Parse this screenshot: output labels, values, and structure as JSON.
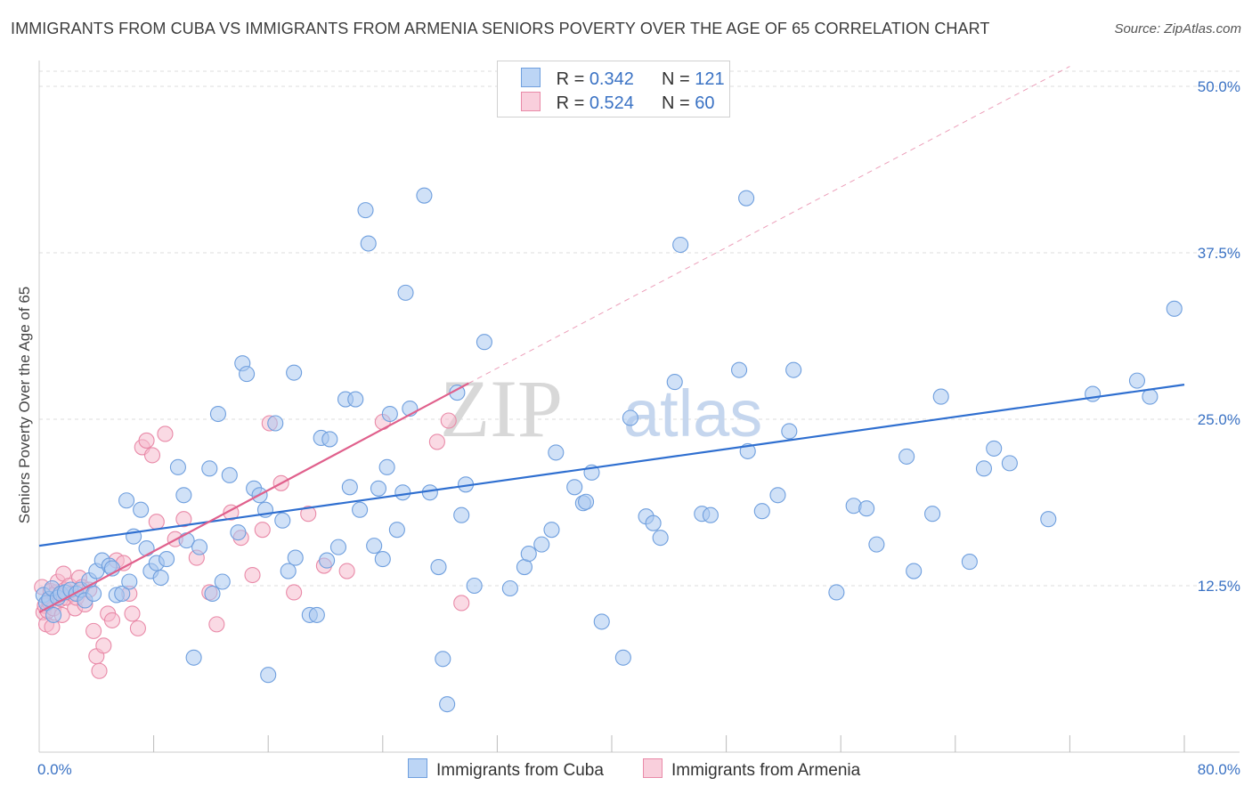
{
  "title": "IMMIGRANTS FROM CUBA VS IMMIGRANTS FROM ARMENIA SENIORS POVERTY OVER THE AGE OF 65 CORRELATION CHART",
  "source": "Source: ZipAtlas.com",
  "watermark": {
    "zip": "ZIP",
    "atlas": "atlas"
  },
  "legend": {
    "cuba": {
      "r_label": "R =",
      "r_value": "0.342",
      "n_label": "N =",
      "n_value": "121"
    },
    "armenia": {
      "r_label": "R =",
      "r_value": "0.524",
      "n_label": "N =",
      "n_value": "60"
    }
  },
  "bottom_legend": {
    "cuba": "Immigrants from Cuba",
    "armenia": "Immigrants from Armenia"
  },
  "colors": {
    "cuba_fill": "#a9c8f0",
    "cuba_stroke": "#6f9fde",
    "cuba_line": "#2f6fd0",
    "armenia_fill": "#f5bccd",
    "armenia_stroke": "#e98aa8",
    "armenia_line": "#e0608c",
    "tick_label": "#3a72c4",
    "grid": "#dddddd"
  },
  "chart_data": {
    "type": "scatter",
    "title": "IMMIGRANTS FROM CUBA VS IMMIGRANTS FROM ARMENIA SENIORS POVERTY OVER THE AGE OF 65 CORRELATION CHART",
    "xlabel": "",
    "ylabel": "Seniors Poverty Over the Age of 65",
    "xlim": [
      0,
      80
    ],
    "ylim": [
      0,
      50
    ],
    "x_tick_labels": [
      {
        "value": 0,
        "label": "0.0%"
      },
      {
        "value": 80,
        "label": "80.0%"
      }
    ],
    "y_tick_labels": [
      {
        "value": 12.5,
        "label": "12.5%"
      },
      {
        "value": 25,
        "label": "25.0%"
      },
      {
        "value": 37.5,
        "label": "37.5%"
      },
      {
        "value": 50,
        "label": "50.0%"
      }
    ],
    "x_minor_ticks": [
      8,
      16,
      24,
      32,
      40,
      48,
      56,
      64,
      72,
      80
    ],
    "series": [
      {
        "name": "Immigrants from Cuba",
        "r": 0.342,
        "n": 121,
        "trend": {
          "x": [
            0,
            80
          ],
          "y": [
            15.5,
            27.6
          ]
        },
        "points": [
          [
            0.3,
            11.8
          ],
          [
            0.5,
            11.2
          ],
          [
            0.7,
            11.5
          ],
          [
            0.9,
            12.3
          ],
          [
            1.0,
            10.3
          ],
          [
            1.3,
            11.6
          ],
          [
            1.5,
            11.9
          ],
          [
            1.8,
            12.0
          ],
          [
            2.2,
            12.2
          ],
          [
            2.6,
            11.9
          ],
          [
            2.9,
            12.2
          ],
          [
            3.2,
            11.4
          ],
          [
            3.5,
            12.9
          ],
          [
            3.8,
            11.9
          ],
          [
            4.0,
            13.6
          ],
          [
            4.4,
            14.4
          ],
          [
            4.9,
            14.0
          ],
          [
            5.1,
            13.8
          ],
          [
            5.4,
            11.8
          ],
          [
            5.8,
            11.9
          ],
          [
            6.1,
            18.9
          ],
          [
            6.3,
            12.8
          ],
          [
            6.6,
            16.2
          ],
          [
            7.1,
            18.2
          ],
          [
            7.5,
            15.3
          ],
          [
            7.8,
            13.6
          ],
          [
            8.2,
            14.2
          ],
          [
            8.5,
            13.1
          ],
          [
            8.9,
            14.5
          ],
          [
            9.7,
            21.4
          ],
          [
            10.1,
            19.3
          ],
          [
            10.3,
            15.9
          ],
          [
            10.8,
            7.1
          ],
          [
            11.2,
            15.4
          ],
          [
            11.9,
            21.3
          ],
          [
            12.1,
            11.9
          ],
          [
            12.5,
            25.4
          ],
          [
            12.8,
            12.8
          ],
          [
            13.3,
            20.8
          ],
          [
            13.9,
            16.5
          ],
          [
            14.2,
            29.2
          ],
          [
            14.5,
            28.4
          ],
          [
            15.0,
            19.8
          ],
          [
            15.4,
            19.3
          ],
          [
            15.8,
            18.2
          ],
          [
            16.0,
            5.8
          ],
          [
            16.5,
            24.7
          ],
          [
            17.0,
            17.4
          ],
          [
            17.4,
            13.6
          ],
          [
            17.8,
            28.5
          ],
          [
            17.9,
            14.6
          ],
          [
            18.9,
            10.3
          ],
          [
            19.4,
            10.3
          ],
          [
            19.7,
            23.6
          ],
          [
            20.1,
            14.4
          ],
          [
            20.3,
            23.5
          ],
          [
            20.9,
            15.4
          ],
          [
            21.4,
            26.5
          ],
          [
            21.7,
            19.9
          ],
          [
            22.1,
            26.5
          ],
          [
            22.4,
            18.2
          ],
          [
            22.8,
            40.7
          ],
          [
            23.0,
            38.2
          ],
          [
            23.4,
            15.5
          ],
          [
            23.7,
            19.8
          ],
          [
            24.0,
            14.5
          ],
          [
            24.3,
            21.4
          ],
          [
            24.5,
            25.4
          ],
          [
            25.0,
            16.7
          ],
          [
            25.4,
            19.5
          ],
          [
            25.6,
            34.5
          ],
          [
            25.9,
            25.8
          ],
          [
            26.9,
            41.8
          ],
          [
            27.3,
            19.5
          ],
          [
            27.9,
            13.9
          ],
          [
            28.2,
            7.0
          ],
          [
            28.5,
            3.6
          ],
          [
            29.2,
            27.0
          ],
          [
            29.5,
            17.8
          ],
          [
            29.8,
            20.1
          ],
          [
            30.4,
            12.5
          ],
          [
            31.1,
            30.8
          ],
          [
            32.9,
            12.3
          ],
          [
            33.9,
            13.9
          ],
          [
            34.2,
            14.9
          ],
          [
            35.1,
            15.6
          ],
          [
            35.8,
            16.7
          ],
          [
            36.1,
            22.5
          ],
          [
            37.4,
            19.9
          ],
          [
            38.0,
            18.7
          ],
          [
            38.2,
            18.8
          ],
          [
            38.6,
            21.0
          ],
          [
            39.3,
            9.8
          ],
          [
            40.8,
            7.1
          ],
          [
            41.3,
            25.1
          ],
          [
            42.4,
            17.7
          ],
          [
            42.9,
            17.2
          ],
          [
            43.4,
            16.1
          ],
          [
            44.4,
            27.8
          ],
          [
            44.8,
            38.1
          ],
          [
            46.3,
            17.9
          ],
          [
            46.9,
            17.8
          ],
          [
            48.9,
            28.7
          ],
          [
            49.4,
            41.6
          ],
          [
            49.5,
            22.6
          ],
          [
            50.5,
            18.1
          ],
          [
            51.6,
            19.3
          ],
          [
            52.4,
            24.1
          ],
          [
            52.7,
            28.7
          ],
          [
            55.7,
            12.0
          ],
          [
            56.9,
            18.5
          ],
          [
            57.8,
            18.3
          ],
          [
            58.5,
            15.6
          ],
          [
            60.6,
            22.2
          ],
          [
            61.1,
            13.6
          ],
          [
            62.4,
            17.9
          ],
          [
            63.0,
            26.7
          ],
          [
            65.0,
            14.3
          ],
          [
            66.0,
            21.3
          ],
          [
            66.7,
            22.8
          ],
          [
            67.8,
            21.7
          ],
          [
            70.5,
            17.5
          ],
          [
            73.6,
            26.9
          ],
          [
            76.7,
            27.9
          ],
          [
            77.6,
            26.7
          ],
          [
            79.3,
            33.3
          ]
        ]
      },
      {
        "name": "Immigrants from Armenia",
        "r": 0.524,
        "n": 60,
        "trend": {
          "x": [
            0,
            30
          ],
          "y": [
            10.5,
            27.7
          ]
        },
        "trend_extension": {
          "x": [
            30,
            72
          ],
          "y": [
            27.7,
            51.5
          ]
        },
        "points": [
          [
            0.2,
            12.4
          ],
          [
            0.3,
            10.5
          ],
          [
            0.4,
            11.0
          ],
          [
            0.5,
            9.6
          ],
          [
            0.6,
            10.6
          ],
          [
            0.7,
            11.3
          ],
          [
            0.8,
            12.1
          ],
          [
            0.9,
            9.4
          ],
          [
            1.0,
            10.8
          ],
          [
            1.1,
            11.8
          ],
          [
            1.2,
            12.0
          ],
          [
            1.3,
            12.8
          ],
          [
            1.5,
            11.5
          ],
          [
            1.6,
            10.3
          ],
          [
            1.7,
            13.4
          ],
          [
            1.8,
            12.2
          ],
          [
            1.9,
            11.6
          ],
          [
            2.1,
            12.5
          ],
          [
            2.3,
            11.9
          ],
          [
            2.5,
            10.8
          ],
          [
            2.6,
            11.6
          ],
          [
            2.8,
            13.1
          ],
          [
            3.0,
            12.4
          ],
          [
            3.2,
            11.1
          ],
          [
            3.5,
            12.2
          ],
          [
            3.8,
            9.1
          ],
          [
            4.0,
            7.2
          ],
          [
            4.2,
            6.1
          ],
          [
            4.5,
            8.0
          ],
          [
            4.8,
            10.4
          ],
          [
            5.1,
            9.9
          ],
          [
            5.4,
            14.4
          ],
          [
            5.9,
            14.2
          ],
          [
            6.3,
            11.9
          ],
          [
            6.5,
            10.4
          ],
          [
            6.9,
            9.3
          ],
          [
            7.2,
            22.9
          ],
          [
            7.5,
            23.4
          ],
          [
            7.9,
            22.3
          ],
          [
            8.2,
            17.3
          ],
          [
            8.8,
            23.9
          ],
          [
            9.5,
            16.0
          ],
          [
            10.1,
            17.5
          ],
          [
            11.0,
            14.6
          ],
          [
            11.9,
            12.0
          ],
          [
            12.4,
            9.6
          ],
          [
            13.4,
            18.0
          ],
          [
            14.1,
            16.1
          ],
          [
            14.9,
            13.3
          ],
          [
            15.6,
            16.7
          ],
          [
            16.1,
            24.7
          ],
          [
            16.9,
            20.2
          ],
          [
            17.8,
            12.0
          ],
          [
            18.8,
            17.9
          ],
          [
            19.9,
            14.0
          ],
          [
            21.5,
            13.6
          ],
          [
            24.0,
            24.8
          ],
          [
            27.8,
            23.3
          ],
          [
            28.6,
            24.9
          ],
          [
            29.5,
            11.2
          ]
        ]
      }
    ]
  }
}
